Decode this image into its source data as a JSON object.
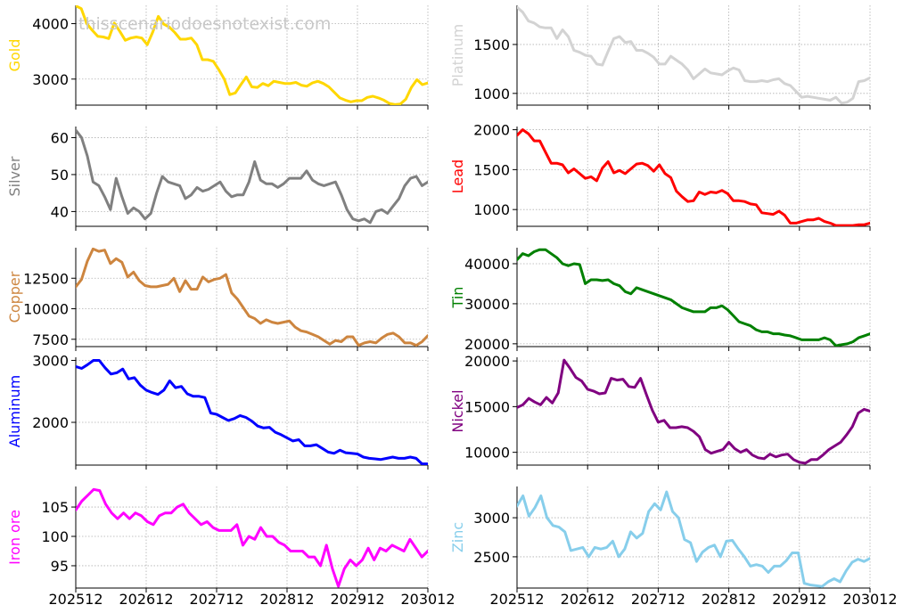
{
  "watermark": "thisscenariodoesnotexist.com",
  "x_tick_labels": [
    "202512",
    "202612",
    "202712",
    "202812",
    "202912",
    "203012"
  ],
  "chart_data": [
    {
      "type": "line",
      "name": "Gold",
      "color": "#FFD700",
      "ylabel": "Gold",
      "ylim": [
        2530,
        4330
      ],
      "yticks": [
        3000,
        4000
      ],
      "values": [
        4320,
        4270,
        4000,
        3880,
        3770,
        3760,
        3730,
        4010,
        3860,
        3700,
        3740,
        3760,
        3740,
        3620,
        3850,
        4130,
        3990,
        3940,
        3840,
        3720,
        3720,
        3740,
        3620,
        3350,
        3350,
        3320,
        3170,
        3000,
        2720,
        2750,
        2900,
        3040,
        2860,
        2850,
        2920,
        2880,
        2960,
        2940,
        2920,
        2920,
        2940,
        2890,
        2870,
        2930,
        2960,
        2920,
        2860,
        2760,
        2660,
        2620,
        2590,
        2610,
        2610,
        2670,
        2690,
        2660,
        2620,
        2560,
        2540,
        2550,
        2640,
        2850,
        2990,
        2900,
        2930
      ]
    },
    {
      "type": "line",
      "name": "Platinum",
      "color": "#D3D3D3",
      "ylabel": "Platinum",
      "ylim": [
        880,
        1900
      ],
      "yticks": [
        1000,
        1500
      ],
      "values": [
        1880,
        1830,
        1740,
        1720,
        1680,
        1670,
        1670,
        1560,
        1650,
        1580,
        1440,
        1420,
        1390,
        1380,
        1300,
        1290,
        1430,
        1560,
        1580,
        1520,
        1530,
        1440,
        1440,
        1410,
        1370,
        1300,
        1300,
        1380,
        1340,
        1300,
        1240,
        1150,
        1200,
        1250,
        1210,
        1200,
        1190,
        1230,
        1260,
        1240,
        1130,
        1120,
        1120,
        1130,
        1120,
        1140,
        1150,
        1100,
        1080,
        1020,
        960,
        970,
        960,
        950,
        940,
        930,
        960,
        900,
        910,
        950,
        1120,
        1130,
        1160
      ]
    },
    {
      "type": "line",
      "name": "Silver",
      "color": "#808080",
      "ylabel": "Silver",
      "ylim": [
        36,
        63
      ],
      "yticks": [
        40,
        50,
        60
      ],
      "values": [
        62,
        60,
        55,
        48,
        47,
        44,
        40.5,
        49,
        44,
        39.5,
        41,
        40,
        38,
        39.5,
        45,
        49.5,
        48,
        47.5,
        47,
        43.5,
        44.5,
        46.5,
        45.5,
        46,
        47,
        48,
        45.5,
        44,
        44.5,
        44.5,
        48,
        53.5,
        48.5,
        47.5,
        47.5,
        46.5,
        47.5,
        49,
        49,
        49,
        51,
        48.5,
        47.5,
        47,
        47.5,
        48,
        44.5,
        40.5,
        38,
        37.5,
        38,
        37,
        40,
        40.5,
        39.5,
        41.5,
        43.5,
        47,
        49,
        49.5,
        47,
        48
      ]
    },
    {
      "type": "line",
      "name": "Lead",
      "color": "#FF0000",
      "ylabel": "Lead",
      "ylim": [
        790,
        2040
      ],
      "yticks": [
        1000,
        1500,
        2000
      ],
      "values": [
        1930,
        2000,
        1950,
        1860,
        1860,
        1720,
        1580,
        1580,
        1560,
        1460,
        1510,
        1450,
        1390,
        1410,
        1360,
        1520,
        1600,
        1460,
        1490,
        1450,
        1510,
        1570,
        1580,
        1550,
        1480,
        1560,
        1450,
        1400,
        1230,
        1160,
        1100,
        1110,
        1220,
        1190,
        1220,
        1210,
        1240,
        1200,
        1110,
        1110,
        1100,
        1070,
        1060,
        960,
        950,
        940,
        980,
        930,
        830,
        830,
        850,
        870,
        870,
        890,
        850,
        830,
        800,
        800,
        800,
        800,
        810,
        810,
        830
      ]
    },
    {
      "type": "line",
      "name": "Copper",
      "color": "#CD853F",
      "ylabel": "Copper",
      "ylim": [
        6900,
        15000
      ],
      "yticks": [
        7500,
        10000,
        12500
      ],
      "values": [
        11800,
        12400,
        13900,
        14900,
        14700,
        14800,
        13700,
        14100,
        13800,
        12600,
        13000,
        12300,
        11900,
        11800,
        11800,
        11900,
        12000,
        12500,
        11400,
        12300,
        11600,
        11600,
        12600,
        12200,
        12400,
        12500,
        12800,
        11300,
        10800,
        10100,
        9400,
        9200,
        8800,
        9100,
        8900,
        8800,
        8900,
        9000,
        8500,
        8200,
        8100,
        7900,
        7700,
        7400,
        7100,
        7400,
        7300,
        7700,
        7700,
        7000,
        7200,
        7300,
        7200,
        7600,
        7900,
        8000,
        7700,
        7200,
        7200,
        7000,
        7300,
        7800
      ]
    },
    {
      "type": "line",
      "name": "Tin",
      "color": "#008000",
      "ylabel": "Tin",
      "ylim": [
        19300,
        44000
      ],
      "yticks": [
        20000,
        30000,
        40000
      ],
      "values": [
        41000,
        42500,
        42000,
        43000,
        43500,
        43500,
        42500,
        41500,
        40000,
        39500,
        40000,
        39800,
        35000,
        36000,
        36000,
        35800,
        36000,
        35000,
        34500,
        33000,
        32500,
        34000,
        33500,
        33000,
        32500,
        32000,
        31500,
        31000,
        30000,
        29000,
        28500,
        28000,
        28000,
        28000,
        29000,
        29000,
        29500,
        28500,
        27000,
        25500,
        25000,
        24500,
        23500,
        23000,
        23000,
        22500,
        22500,
        22200,
        22000,
        21500,
        21000,
        21000,
        21000,
        21000,
        21500,
        21000,
        19500,
        19800,
        20000,
        20500,
        21500,
        22000,
        22500
      ]
    },
    {
      "type": "line",
      "name": "Aluminum",
      "color": "#0000FF",
      "ylabel": "Aluminum",
      "ylim": [
        1310,
        3050
      ],
      "yticks": [
        2000,
        3000
      ],
      "values": [
        2900,
        2870,
        2930,
        3000,
        3000,
        2880,
        2780,
        2800,
        2860,
        2700,
        2720,
        2600,
        2520,
        2480,
        2450,
        2520,
        2670,
        2560,
        2580,
        2460,
        2420,
        2420,
        2400,
        2150,
        2130,
        2080,
        2030,
        2060,
        2110,
        2080,
        2020,
        1940,
        1910,
        1920,
        1840,
        1800,
        1750,
        1700,
        1720,
        1620,
        1620,
        1640,
        1580,
        1520,
        1500,
        1550,
        1510,
        1500,
        1490,
        1440,
        1420,
        1410,
        1400,
        1420,
        1440,
        1420,
        1420,
        1440,
        1420,
        1330,
        1330
      ]
    },
    {
      "type": "line",
      "name": "Nickel",
      "color": "#800080",
      "ylabel": "Nickel",
      "ylim": [
        8600,
        20400
      ],
      "yticks": [
        10000,
        15000,
        20000
      ],
      "values": [
        14900,
        15200,
        15900,
        15500,
        15200,
        16000,
        15400,
        16500,
        20100,
        19200,
        18200,
        17800,
        16900,
        16700,
        16400,
        16500,
        18100,
        17900,
        18000,
        17200,
        17100,
        18100,
        16300,
        14600,
        13300,
        13500,
        12700,
        12700,
        12800,
        12700,
        12300,
        11700,
        10300,
        9900,
        10100,
        10300,
        11100,
        10400,
        10000,
        10300,
        9700,
        9400,
        9300,
        9800,
        9500,
        9700,
        9800,
        9200,
        8900,
        8800,
        9200,
        9200,
        9700,
        10300,
        10700,
        11100,
        11900,
        12800,
        14300,
        14700,
        14500
      ]
    },
    {
      "type": "line",
      "name": "Iron ore",
      "color": "#FF00FF",
      "ylabel": "Iron ore",
      "ylim": [
        91.2,
        108.5
      ],
      "yticks": [
        95,
        100,
        105
      ],
      "values": [
        104.5,
        106,
        107,
        108,
        107.8,
        105.5,
        104,
        103,
        104,
        103,
        104,
        103.5,
        102.5,
        102,
        103.5,
        104,
        104,
        105,
        105.5,
        104,
        103,
        102,
        102.5,
        101.5,
        101,
        101,
        101,
        102,
        98.5,
        100,
        99.5,
        101.5,
        100,
        100,
        99,
        98.5,
        97.5,
        97.5,
        97.5,
        96.5,
        96.5,
        95,
        98.5,
        94.5,
        91.5,
        94.5,
        96,
        95,
        96,
        98,
        96,
        98,
        97.5,
        98.5,
        98,
        97.5,
        99.5,
        98,
        96.5,
        97.5
      ]
    },
    {
      "type": "line",
      "name": "Zinc",
      "color": "#87CEEB",
      "ylabel": "Zinc",
      "ylim": [
        2100,
        3400
      ],
      "yticks": [
        2500,
        3000
      ],
      "values": [
        3150,
        3280,
        3020,
        3130,
        3280,
        3000,
        2900,
        2880,
        2820,
        2580,
        2600,
        2620,
        2500,
        2620,
        2600,
        2620,
        2700,
        2500,
        2600,
        2820,
        2740,
        2800,
        3080,
        3180,
        3100,
        3330,
        3080,
        3000,
        2720,
        2680,
        2440,
        2560,
        2620,
        2650,
        2500,
        2700,
        2710,
        2600,
        2500,
        2380,
        2400,
        2380,
        2300,
        2380,
        2380,
        2450,
        2550,
        2550,
        2160,
        2140,
        2130,
        2120,
        2180,
        2220,
        2180,
        2320,
        2430,
        2470,
        2440,
        2480
      ]
    }
  ]
}
